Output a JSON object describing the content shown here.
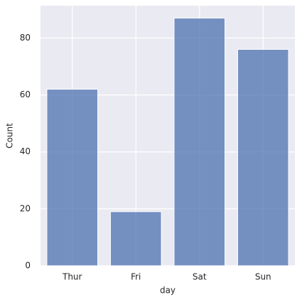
{
  "chart_data": {
    "type": "bar",
    "x_label": "day",
    "y_label": "Count",
    "categories": [
      "Thur",
      "Fri",
      "Sat",
      "Sun"
    ],
    "values": [
      62,
      19,
      87,
      76
    ],
    "color": "#4c72b0",
    "ylim": [
      0,
      91.35
    ],
    "yticks": [
      0,
      20,
      40,
      60,
      80
    ],
    "grid": true
  }
}
